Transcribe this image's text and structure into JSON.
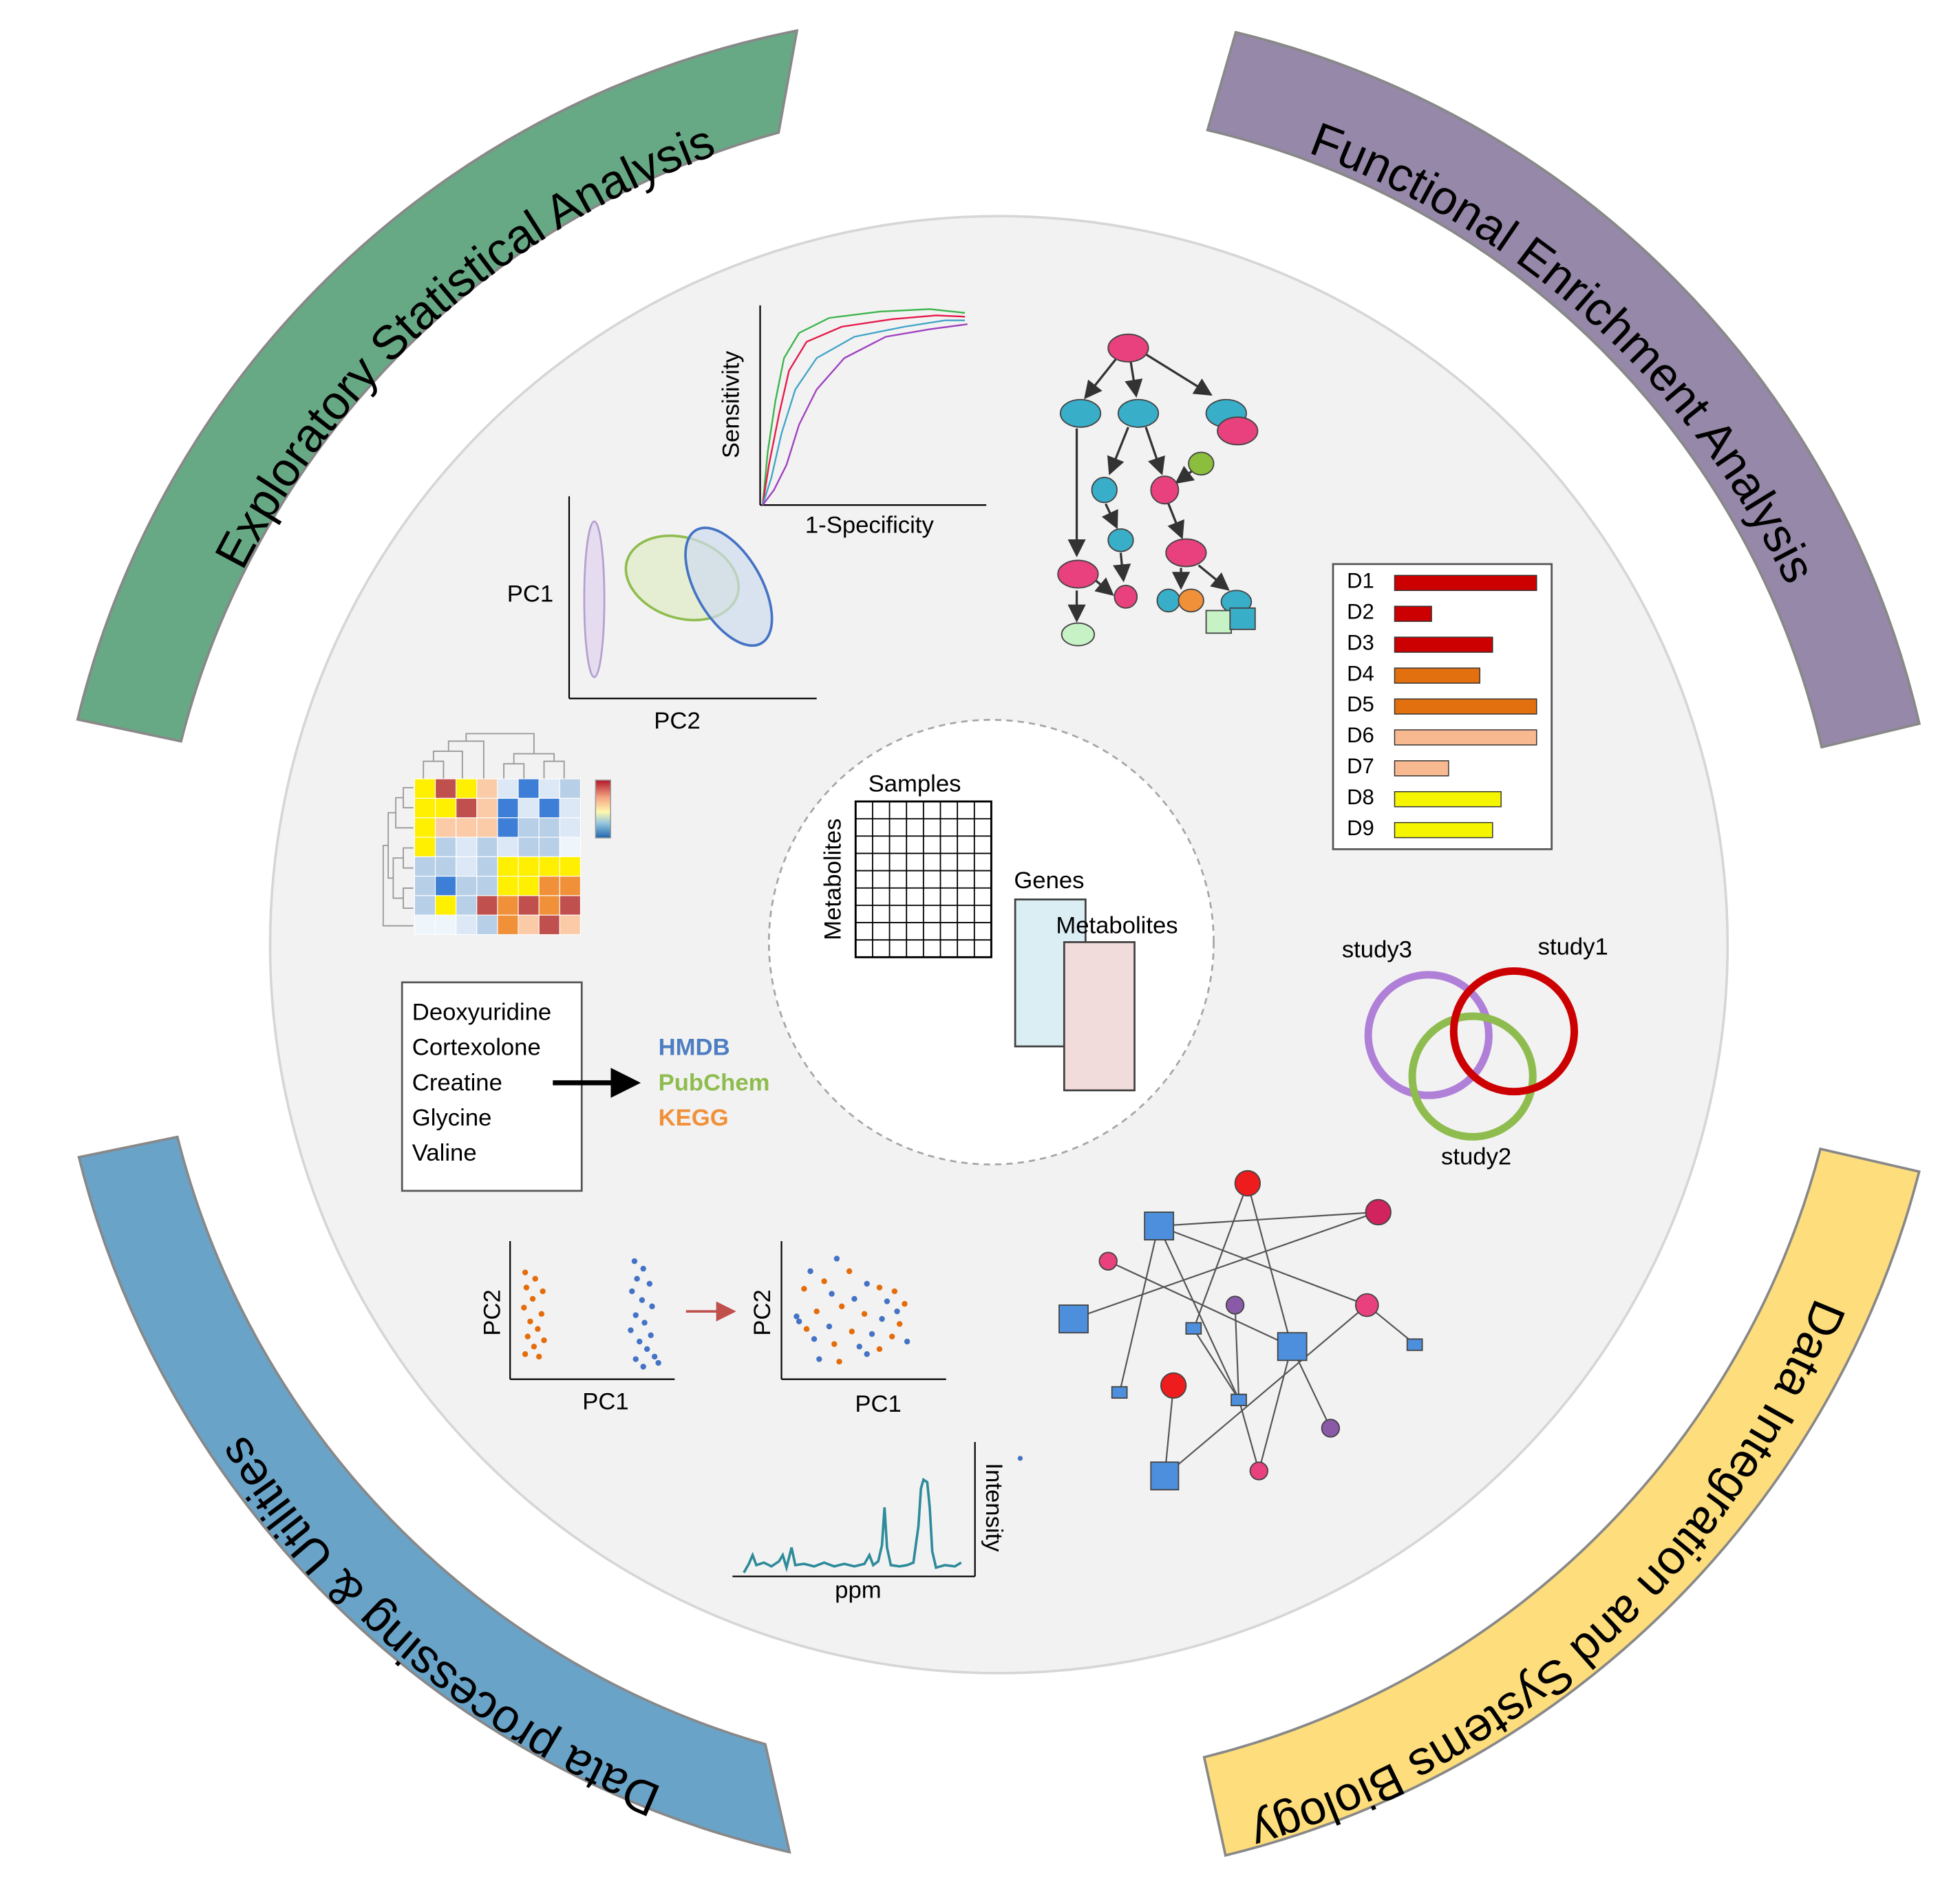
{
  "arcs": {
    "top_left": {
      "label": "Exploratory Statistical Analysis",
      "color": "#67a985"
    },
    "top_right": {
      "label": "Functional Enrichment Analysis",
      "color": "#9688a8"
    },
    "bottom_left": {
      "label": "Data processing & Utilities",
      "color": "#6aa3c8"
    },
    "bottom_right": {
      "label": "Data Integration and Systems Biology",
      "color": "#fddd7c"
    }
  },
  "center": {
    "samples_label": "Samples",
    "metabolites_label": "Metabolites",
    "genes_label": "Genes",
    "metabolites2_label": "Metabolites"
  },
  "roc": {
    "ylabel": "Sensitivity",
    "xlabel": "1-Specificity",
    "colors": [
      "#3cb44b",
      "#e6194b",
      "#42a5c8",
      "#a040c0"
    ]
  },
  "pca": {
    "ylabel": "PC1",
    "xlabel": "PC2"
  },
  "mapping": {
    "compounds": [
      "Deoxyuridine",
      "Cortexolone",
      "Creatine",
      "Glycine",
      "Valine"
    ],
    "databases": [
      {
        "name": "HMDB",
        "color": "#4d7ec2"
      },
      {
        "name": "PubChem",
        "color": "#8fbc4e"
      },
      {
        "name": "KEGG",
        "color": "#f0913a"
      }
    ]
  },
  "batch": {
    "before": {
      "ylabel": "PC2",
      "xlabel": "PC1"
    },
    "after": {
      "ylabel": "PC2",
      "xlabel": "PC1"
    }
  },
  "spectrum": {
    "ylabel": "Intensity",
    "xlabel": "ppm"
  },
  "enrichment": {
    "chart_data": {
      "type": "bar",
      "categories": [
        "D1",
        "D2",
        "D3",
        "D4",
        "D5",
        "D6",
        "D7",
        "D8",
        "D9"
      ],
      "values": [
        100,
        26,
        69,
        60,
        100,
        100,
        38,
        75,
        69
      ],
      "colors": [
        "#cc0000",
        "#cc0000",
        "#cc0000",
        "#e3700e",
        "#e3700e",
        "#f8b990",
        "#f8b990",
        "#f5f500",
        "#f5f500"
      ]
    }
  },
  "venn": {
    "labels": [
      "study3",
      "study1",
      "study2"
    ],
    "colors": [
      "#b07fd8",
      "#cc0000",
      "#8fbc4e"
    ]
  }
}
